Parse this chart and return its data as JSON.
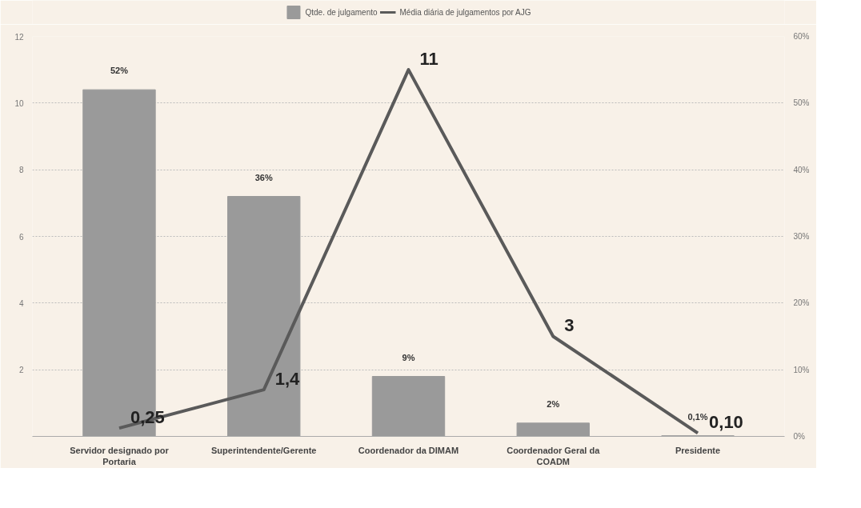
{
  "chart_data": {
    "type": "bar",
    "categories": [
      "Servidor designado por Portaria",
      "Superintendente/Gerente",
      "Coordenador da DIMAM",
      "Coordenador Geral da COADM",
      "Presidente"
    ],
    "series": [
      {
        "name": "Qtde. de julgamento",
        "axis": "y2",
        "color": "#9a9a9a",
        "values": [
          52,
          36,
          9,
          2,
          0.1
        ],
        "value_labels": [
          "52%",
          "36%",
          "9%",
          "2%",
          "0,1%"
        ]
      },
      {
        "name": "Média diária de julgamentos por AJG",
        "type": "line",
        "color": "#5a5a5a",
        "values": [
          0.25,
          1.4,
          11,
          3,
          0.1
        ],
        "value_labels": [
          "0,25",
          "1,4",
          "11",
          "3",
          "0,10"
        ]
      }
    ],
    "ylim": [
      0,
      12
    ],
    "yticks": [
      2,
      4,
      6,
      8,
      10,
      12
    ],
    "y2lim": [
      0,
      60
    ],
    "y2ticks": [
      {
        "value": 0,
        "label": "0%"
      },
      {
        "value": 10,
        "label": "10%"
      },
      {
        "value": 20,
        "label": "20%"
      },
      {
        "value": 30,
        "label": "30%"
      },
      {
        "value": 40,
        "label": "40%"
      },
      {
        "value": 50,
        "label": "50%"
      },
      {
        "value": 60,
        "label": "60%"
      }
    ],
    "grid": "y",
    "legend": "top",
    "marker": "none",
    "line_style": "solid"
  }
}
